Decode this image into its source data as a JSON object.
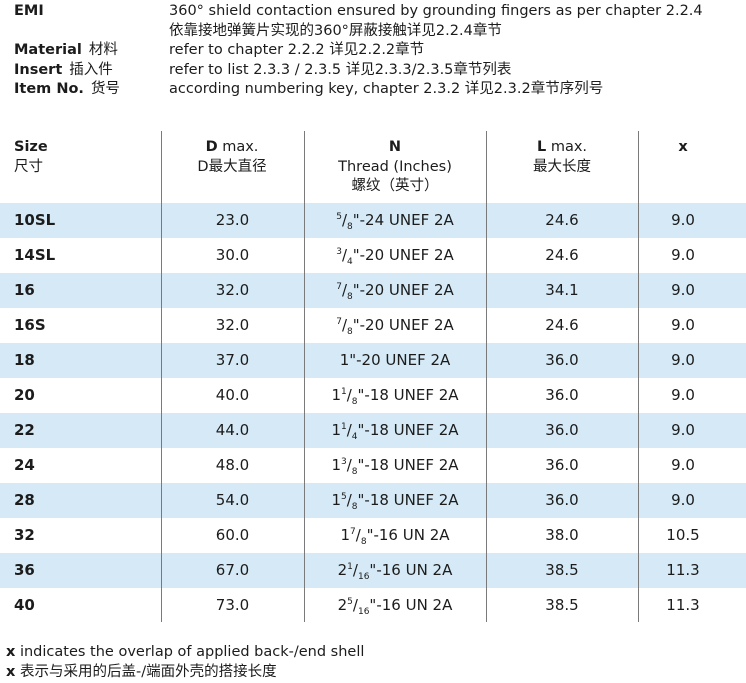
{
  "info": [
    {
      "key": "EMI",
      "key_cn": "",
      "value": "360° shield contaction ensured by grounding fingers as per chapter 2.2.4"
    },
    {
      "key": "",
      "key_cn": "",
      "value": "依靠接地弹簧片实现的360°屏蔽接触详见2.2.4章节"
    },
    {
      "key": "Material",
      "key_cn": "材料",
      "value": "refer to chapter 2.2.2  详见2.2.2章节"
    },
    {
      "key": "Insert",
      "key_cn": "插入件",
      "value": "refer to list 2.3.3 / 2.3.5  详见2.3.3/2.3.5章节列表"
    },
    {
      "key": "Item No.",
      "key_cn": "货号",
      "value": "according numbering key, chapter 2.3.2  详见2.3.2章节序列号"
    }
  ],
  "headers": {
    "size": {
      "line1": "Size",
      "line2": "尺寸"
    },
    "d": {
      "bold": "D",
      "line1_rest": " max.",
      "line2": "D最大直径"
    },
    "n": {
      "bold": "N",
      "line2": "Thread (Inches)",
      "line3": "螺纹（英寸）"
    },
    "l": {
      "bold": "L",
      "line1_rest": " max.",
      "line2": "最大长度"
    },
    "x": {
      "bold": "x"
    }
  },
  "rows": [
    {
      "size": "10SL",
      "d": "23.0",
      "thread": {
        "whole": "",
        "num": "5",
        "den": "8",
        "rest": "\"-24 UNEF 2A"
      },
      "l": "24.6",
      "x": "9.0"
    },
    {
      "size": "14SL",
      "d": "30.0",
      "thread": {
        "whole": "",
        "num": "3",
        "den": "4",
        "rest": "\"-20 UNEF 2A"
      },
      "l": "24.6",
      "x": "9.0"
    },
    {
      "size": "16",
      "d": "32.0",
      "thread": {
        "whole": "",
        "num": "7",
        "den": "8",
        "rest": "\"-20 UNEF 2A"
      },
      "l": "34.1",
      "x": "9.0"
    },
    {
      "size": "16S",
      "d": "32.0",
      "thread": {
        "whole": "",
        "num": "7",
        "den": "8",
        "rest": "\"-20 UNEF 2A"
      },
      "l": "24.6",
      "x": "9.0"
    },
    {
      "size": "18",
      "d": "37.0",
      "thread": {
        "whole": "1",
        "num": "",
        "den": "",
        "rest": "\"-20 UNEF 2A"
      },
      "l": "36.0",
      "x": "9.0"
    },
    {
      "size": "20",
      "d": "40.0",
      "thread": {
        "whole": "1",
        "num": "1",
        "den": "8",
        "rest": "\"-18 UNEF 2A"
      },
      "l": "36.0",
      "x": "9.0"
    },
    {
      "size": "22",
      "d": "44.0",
      "thread": {
        "whole": "1",
        "num": "1",
        "den": "4",
        "rest": "\"-18 UNEF 2A"
      },
      "l": "36.0",
      "x": "9.0"
    },
    {
      "size": "24",
      "d": "48.0",
      "thread": {
        "whole": "1",
        "num": "3",
        "den": "8",
        "rest": "\"-18 UNEF 2A"
      },
      "l": "36.0",
      "x": "9.0"
    },
    {
      "size": "28",
      "d": "54.0",
      "thread": {
        "whole": "1",
        "num": "5",
        "den": "8",
        "rest": "\"-18 UNEF 2A"
      },
      "l": "36.0",
      "x": "9.0"
    },
    {
      "size": "32",
      "d": "60.0",
      "thread": {
        "whole": "1",
        "num": "7",
        "den": "8",
        "rest": "\"-16 UN 2A"
      },
      "l": "38.0",
      "x": "10.5"
    },
    {
      "size": "36",
      "d": "67.0",
      "thread": {
        "whole": "2",
        "num": "1",
        "den": "16",
        "rest": "\"-16 UN 2A"
      },
      "l": "38.5",
      "x": "11.3"
    },
    {
      "size": "40",
      "d": "73.0",
      "thread": {
        "whole": "2",
        "num": "5",
        "den": "16",
        "rest": "\"-16 UN 2A"
      },
      "l": "38.5",
      "x": "11.3"
    }
  ],
  "footer": {
    "line1_bold": "x",
    "line1_rest": " indicates the overlap of applied back-/end shell",
    "line2_bold": "x",
    "line2_rest": " 表示与采用的后盖-/端面外壳的搭接长度"
  },
  "colors": {
    "row_shade": "#d5eaf6",
    "divider": "#7a7a7a"
  }
}
